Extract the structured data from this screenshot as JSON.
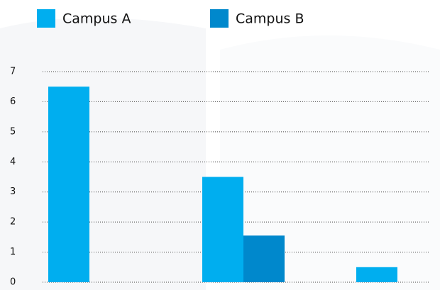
{
  "chart_data": {
    "type": "bar",
    "categories": [
      null,
      null,
      null
    ],
    "series": [
      {
        "name": "Campus A",
        "color": "#00aeef",
        "values": [
          6.5,
          3.5,
          0.5
        ]
      },
      {
        "name": "Campus B",
        "color": "#0088cc",
        "values": [
          0,
          1.55,
          0
        ]
      }
    ],
    "ylim": [
      0,
      7
    ],
    "yticks": [
      0,
      1,
      2,
      3,
      4,
      5,
      6,
      7
    ],
    "grid": true,
    "legend": "top"
  }
}
